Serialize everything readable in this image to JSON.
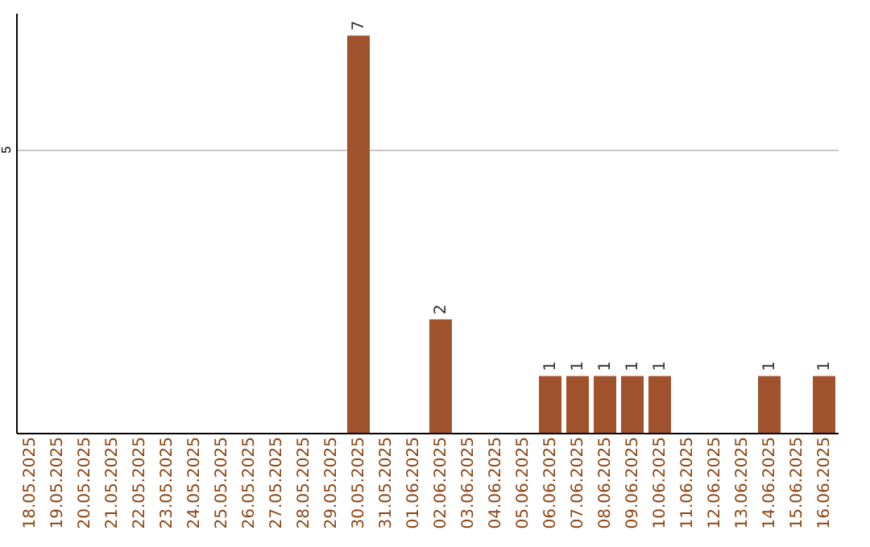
{
  "chart_data": {
    "type": "bar",
    "categories": [
      "18.05.2025",
      "19.05.2025",
      "20.05.2025",
      "21.05.2025",
      "22.05.2025",
      "23.05.2025",
      "24.05.2025",
      "25.05.2025",
      "26.05.2025",
      "27.05.2025",
      "28.05.2025",
      "29.05.2025",
      "30.05.2025",
      "31.05.2025",
      "01.06.2025",
      "02.06.2025",
      "03.06.2025",
      "04.06.2025",
      "05.06.2025",
      "06.06.2025",
      "07.06.2025",
      "08.06.2025",
      "09.06.2025",
      "10.06.2025",
      "11.06.2025",
      "12.06.2025",
      "13.06.2025",
      "14.06.2025",
      "15.06.2025",
      "16.06.2025"
    ],
    "values": [
      null,
      null,
      null,
      null,
      null,
      null,
      null,
      null,
      null,
      null,
      null,
      null,
      7,
      null,
      null,
      2,
      null,
      null,
      null,
      1,
      1,
      1,
      1,
      1,
      null,
      null,
      null,
      1,
      null,
      1
    ],
    "data_labels": true,
    "color": "#a0522d",
    "ylim": [
      0,
      7.4
    ],
    "yticks": [
      5
    ],
    "grid": "y"
  }
}
